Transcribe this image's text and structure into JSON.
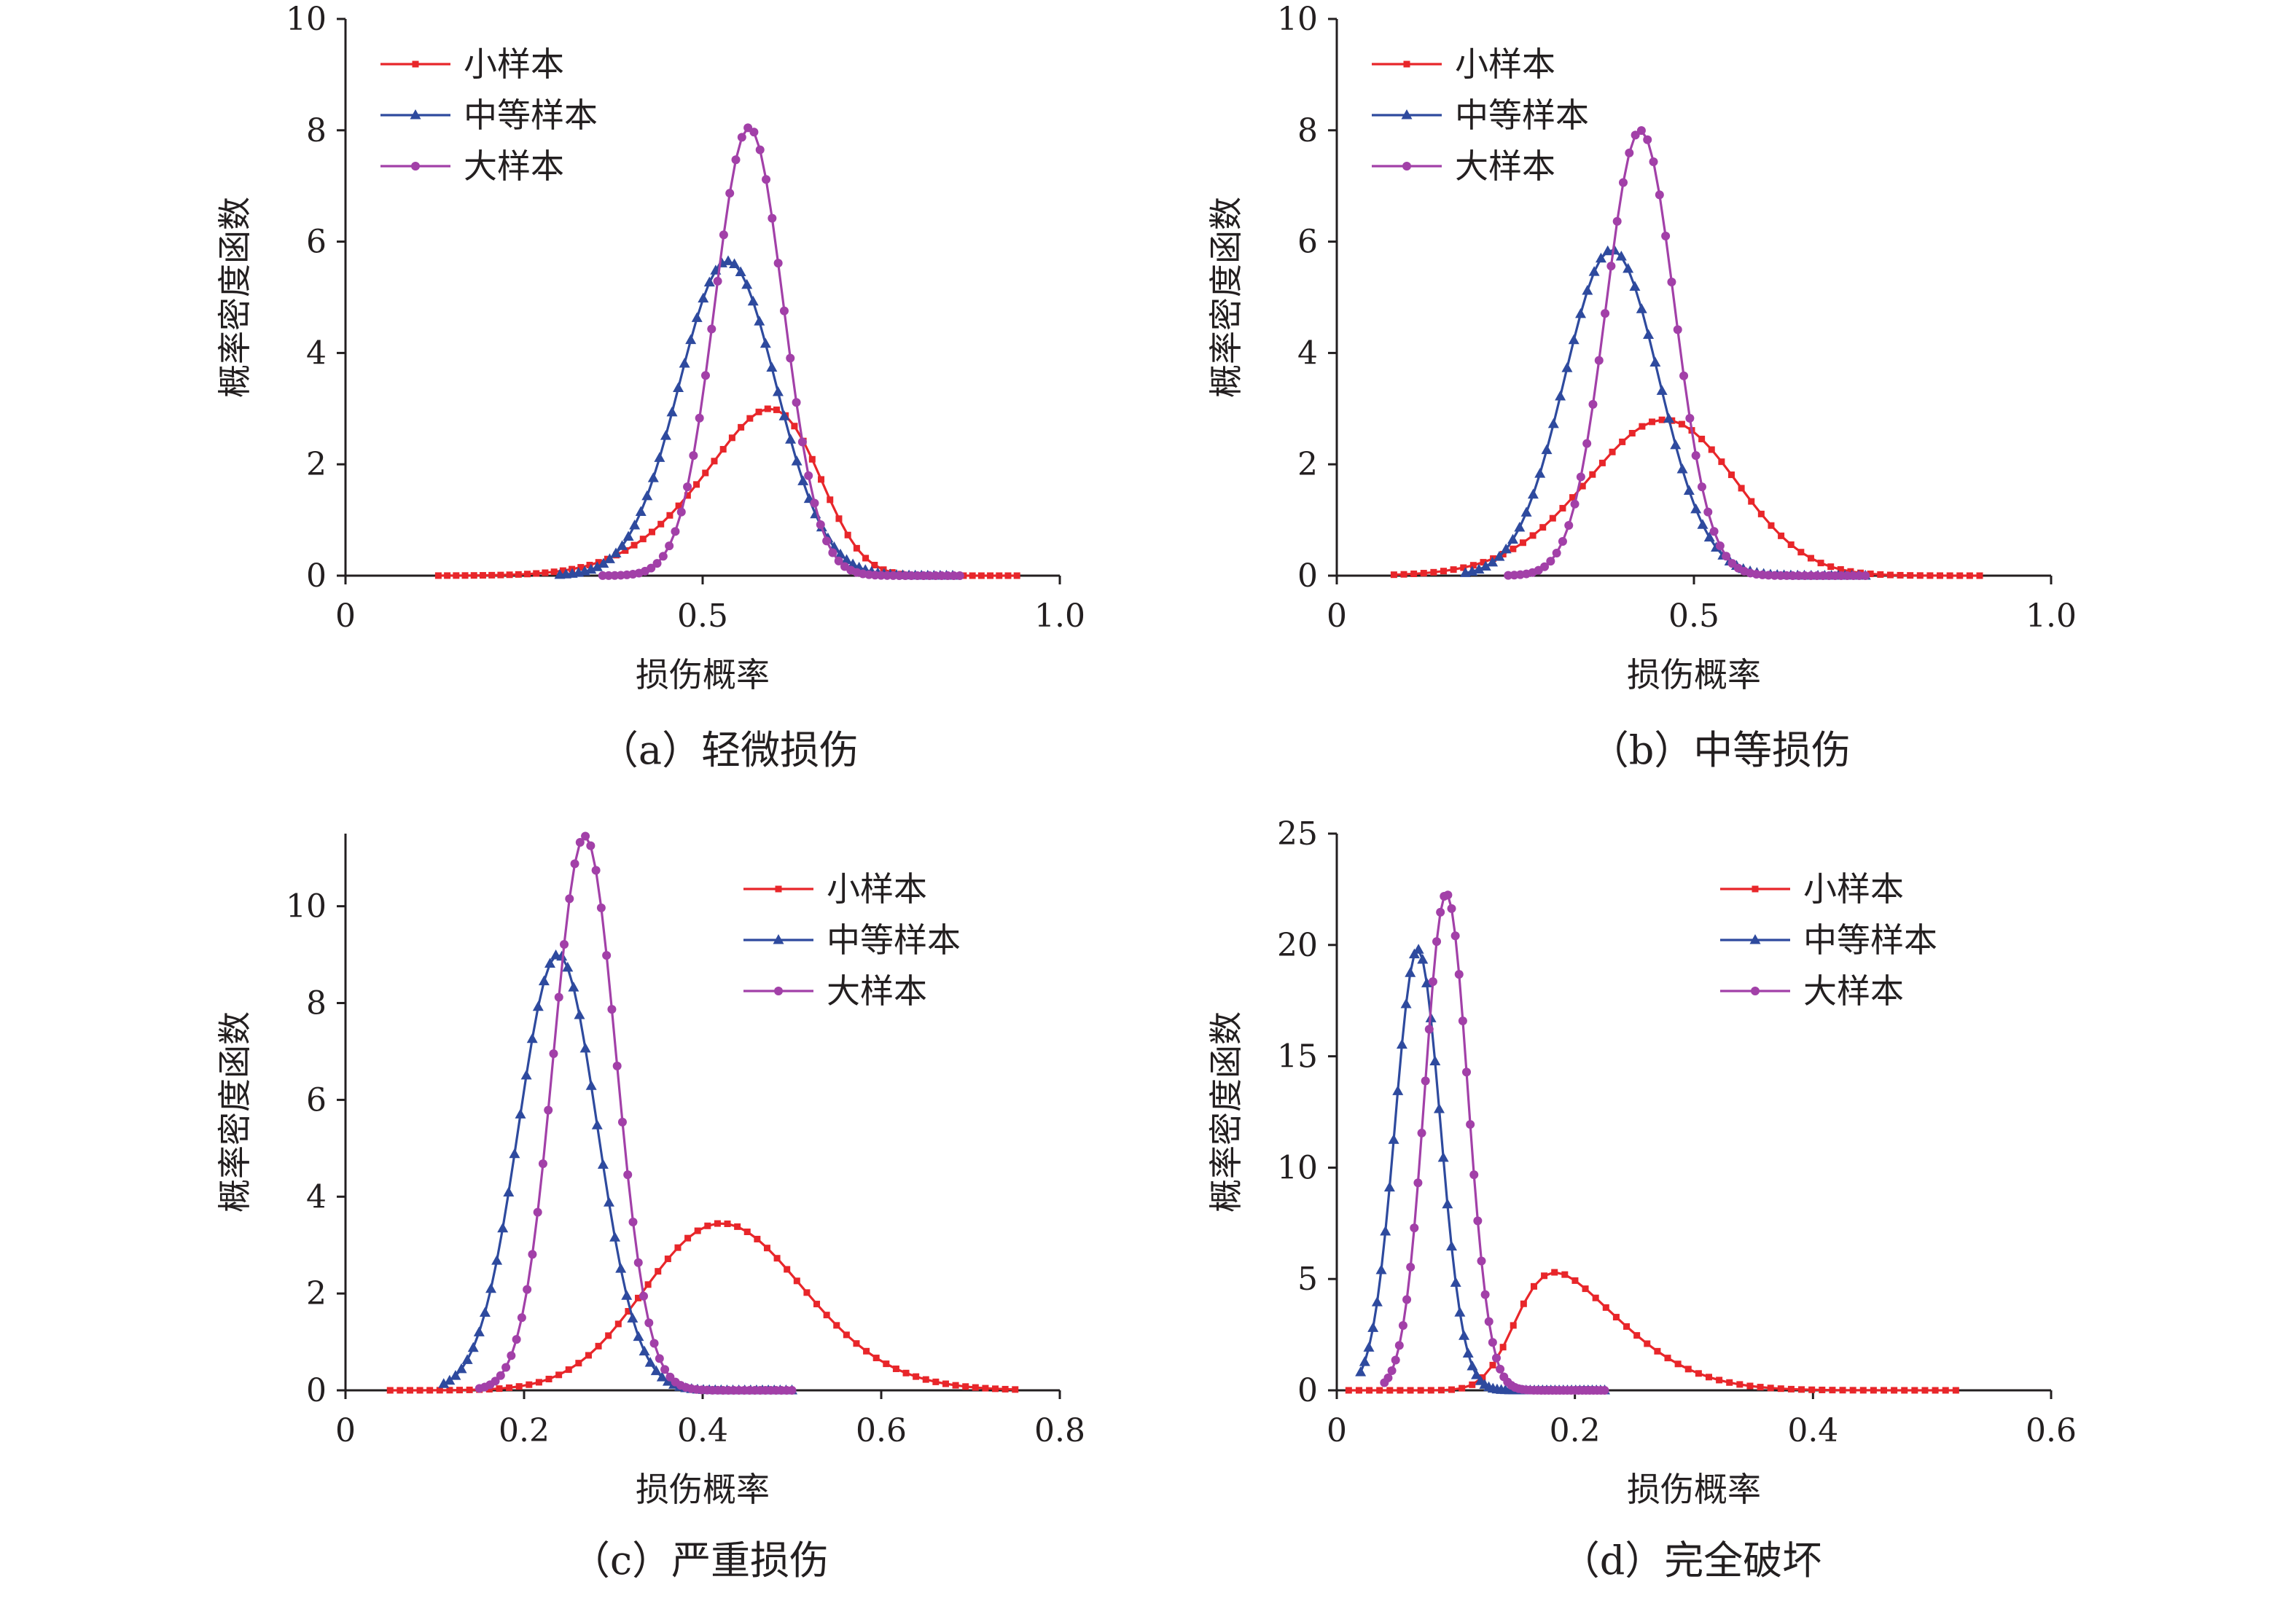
{
  "chart_data": [
    {
      "type": "line",
      "caption": "（a）轻微损伤",
      "xlabel": "损伤概率",
      "ylabel": "概率密度函数",
      "xlim": [
        0,
        1.0
      ],
      "ylim": [
        0,
        10
      ],
      "xticks": [
        0,
        0.5,
        1.0
      ],
      "xtick_labels": [
        "0",
        "0.5",
        "1.0"
      ],
      "yticks": [
        0,
        2,
        4,
        6,
        8,
        10
      ],
      "ytick_labels": [
        "0",
        "2",
        "4",
        "6",
        "8",
        "10"
      ],
      "legend_position": "top-left",
      "series": [
        {
          "name": "小样本",
          "marker": "square",
          "color": "#e8262a",
          "shape": "skewnorm",
          "mean": 0.66,
          "sd": 0.13,
          "alpha": -2.5,
          "peak": 3.0,
          "range": [
            0.13,
            0.94
          ],
          "points": 66
        },
        {
          "name": "中等样本",
          "marker": "triangle",
          "color": "#2e4a9e",
          "shape": "normal",
          "mean": 0.535,
          "sd": 0.068,
          "alpha": 0,
          "peak": 5.65,
          "range": [
            0.3,
            0.85
          ],
          "points": 64
        },
        {
          "name": "大样本",
          "marker": "circle",
          "color": "#a240a8",
          "shape": "normal",
          "mean": 0.565,
          "sd": 0.048,
          "alpha": 0,
          "peak": 8.05,
          "range": [
            0.36,
            0.86
          ],
          "points": 60
        }
      ]
    },
    {
      "type": "line",
      "caption": "（b）中等损伤",
      "xlabel": "损伤概率",
      "ylabel": "概率密度函数",
      "xlim": [
        0,
        1.0
      ],
      "ylim": [
        0,
        10
      ],
      "xticks": [
        0,
        0.5,
        1.0
      ],
      "xtick_labels": [
        "0",
        "0.5",
        "1.0"
      ],
      "yticks": [
        0,
        2,
        4,
        6,
        8,
        10
      ],
      "ytick_labels": [
        "0",
        "2",
        "4",
        "6",
        "8",
        "10"
      ],
      "legend_position": "top-left",
      "series": [
        {
          "name": "小样本",
          "marker": "square",
          "color": "#e8262a",
          "shape": "skewnorm",
          "mean": 0.53,
          "sd": 0.135,
          "alpha": -1.2,
          "peak": 2.8,
          "range": [
            0.08,
            0.9
          ],
          "points": 60
        },
        {
          "name": "中等样本",
          "marker": "triangle",
          "color": "#2e4a9e",
          "shape": "normal",
          "mean": 0.385,
          "sd": 0.066,
          "alpha": 0,
          "peak": 5.85,
          "range": [
            0.18,
            0.74
          ],
          "points": 60
        },
        {
          "name": "大样本",
          "marker": "circle",
          "color": "#a240a8",
          "shape": "normal",
          "mean": 0.425,
          "sd": 0.048,
          "alpha": 0,
          "peak": 8.0,
          "range": [
            0.24,
            0.74
          ],
          "points": 60
        }
      ]
    },
    {
      "type": "line",
      "caption": "（c）严重损伤",
      "xlabel": "损伤概率",
      "ylabel": "概率密度函数",
      "xlim": [
        0,
        0.8
      ],
      "ylim": [
        0,
        11.5
      ],
      "xticks": [
        0,
        0.2,
        0.4,
        0.6,
        0.8
      ],
      "xtick_labels": [
        "0",
        "0.2",
        "0.4",
        "0.6",
        "0.8"
      ],
      "yticks": [
        0,
        2,
        4,
        6,
        8,
        10
      ],
      "ytick_labels": [
        "0",
        "2",
        "4",
        "6",
        "8",
        "10"
      ],
      "legend_position": "top-right",
      "series": [
        {
          "name": "小样本",
          "marker": "square",
          "color": "#e8262a",
          "shape": "skewnorm",
          "mean": 0.36,
          "sd": 0.115,
          "alpha": 1.2,
          "peak": 3.45,
          "range": [
            0.05,
            0.75
          ],
          "points": 64
        },
        {
          "name": "中等样本",
          "marker": "triangle",
          "color": "#2e4a9e",
          "shape": "normal",
          "mean": 0.238,
          "sd": 0.044,
          "alpha": 0,
          "peak": 9.0,
          "range": [
            0.11,
            0.5
          ],
          "points": 60
        },
        {
          "name": "大样本",
          "marker": "circle",
          "color": "#a240a8",
          "shape": "normal",
          "mean": 0.268,
          "sd": 0.035,
          "alpha": 0,
          "peak": 11.45,
          "range": [
            0.15,
            0.5
          ],
          "points": 60
        }
      ]
    },
    {
      "type": "line",
      "caption": "（d）完全破坏",
      "xlabel": "损伤概率",
      "ylabel": "概率密度函数",
      "xlim": [
        0,
        0.6
      ],
      "ylim": [
        0,
        25
      ],
      "xticks": [
        0,
        0.2,
        0.4,
        0.6
      ],
      "xtick_labels": [
        "0",
        "0.2",
        "0.4",
        "0.6"
      ],
      "yticks": [
        0,
        5,
        10,
        15,
        20,
        25
      ],
      "ytick_labels": [
        "0",
        "5",
        "10",
        "15",
        "20",
        "25"
      ],
      "legend_position": "top-right",
      "series": [
        {
          "name": "小样本",
          "marker": "square",
          "color": "#e8262a",
          "shape": "skewnorm",
          "mean": 0.15,
          "sd": 0.075,
          "alpha": 3.5,
          "peak": 5.3,
          "range": [
            0.01,
            0.52
          ],
          "points": 60
        },
        {
          "name": "中等样本",
          "marker": "triangle",
          "color": "#2e4a9e",
          "shape": "normal",
          "mean": 0.068,
          "sd": 0.019,
          "alpha": 0,
          "peak": 19.8,
          "range": [
            0.02,
            0.225
          ],
          "points": 60
        },
        {
          "name": "大样本",
          "marker": "circle",
          "color": "#a240a8",
          "shape": "normal",
          "mean": 0.092,
          "sd": 0.018,
          "alpha": 0,
          "peak": 22.3,
          "range": [
            0.04,
            0.225
          ],
          "points": 60
        }
      ]
    }
  ]
}
